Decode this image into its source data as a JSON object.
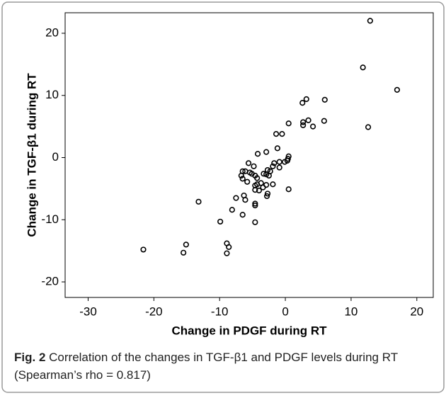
{
  "chart_data": {
    "type": "scatter",
    "x_label": "Change in PDGF during RT",
    "y_label": "Change in TGF-β1 during RT",
    "xlim": [
      -33.5,
      22.5
    ],
    "ylim": [
      -22.5,
      23.3
    ],
    "xticks": [
      -30,
      -20,
      -10,
      0,
      10,
      20
    ],
    "yticks": [
      -20,
      -10,
      0,
      10,
      20
    ],
    "color": "#000000",
    "x": [
      12.9,
      11.8,
      17.0,
      3.2,
      2.6,
      6.0,
      5.9,
      2.7,
      2.7,
      3.5,
      4.2,
      12.6,
      0.5,
      -0.5,
      -1.4,
      -1.2,
      -2.9,
      -4.2,
      0.5,
      0.4,
      0.3,
      -0.1,
      -0.9,
      -0.9,
      -1.7,
      -1.9,
      -2.3,
      -2.7,
      -2.9,
      -3.3,
      -2.5,
      -4.8,
      -5.6,
      -5.4,
      -6.1,
      -6.7,
      -6.5,
      -6.5,
      -5.8,
      -5.1,
      -4.6,
      -4.3,
      -4.3,
      -4.6,
      -3.4,
      -2.9,
      -3.7,
      -1.9,
      -4.6,
      -4.0,
      -2.7,
      -2.8,
      0.5,
      -6.3,
      -6.1,
      -7.5,
      -4.6,
      -4.6,
      -8.1,
      -6.5,
      -9.9,
      -4.6,
      -13.2,
      -8.9,
      -8.6,
      -8.9,
      -15.1,
      -15.5,
      -21.6
    ],
    "values": [
      22.0,
      14.5,
      10.9,
      9.4,
      8.8,
      9.3,
      5.9,
      5.7,
      5.2,
      6.0,
      5.0,
      4.9,
      5.5,
      3.8,
      3.8,
      1.5,
      0.9,
      0.6,
      0.2,
      -0.2,
      -0.5,
      -0.7,
      -0.7,
      -1.6,
      -0.9,
      -1.4,
      -2.2,
      -2.0,
      -2.7,
      -2.6,
      -2.9,
      -1.4,
      -0.9,
      -2.4,
      -2.2,
      -2.9,
      -2.2,
      -3.4,
      -3.9,
      -2.6,
      -2.9,
      -3.3,
      -4.3,
      -4.5,
      -4.8,
      -4.4,
      -4.1,
      -4.3,
      -5.2,
      -5.3,
      -5.8,
      -6.2,
      -5.1,
      -6.1,
      -6.8,
      -6.5,
      -7.4,
      -7.7,
      -8.4,
      -9.2,
      -10.3,
      -10.4,
      -7.1,
      -13.8,
      -14.4,
      -15.4,
      -14.0,
      -15.3,
      -14.8
    ]
  },
  "caption": {
    "label": "Fig. 2",
    "text": "Correlation of the changes in TGF-β1 and PDGF levels during RT (Spearman’s rho = 0.817)"
  }
}
